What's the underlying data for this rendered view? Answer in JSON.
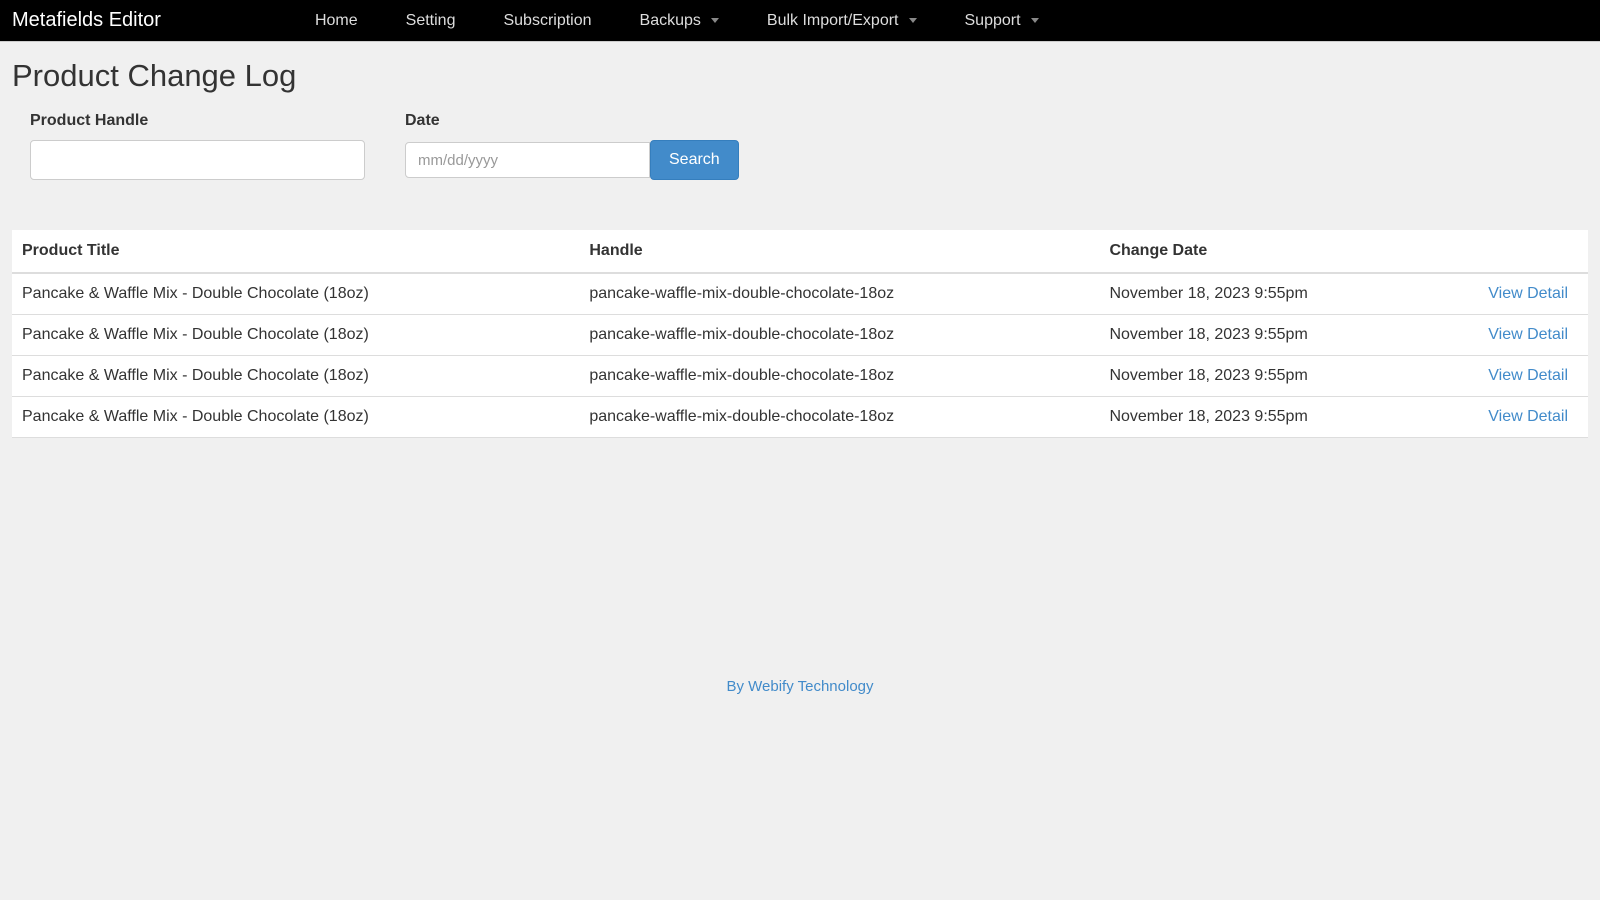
{
  "navbar": {
    "brand": "Metafields Editor",
    "items": [
      {
        "label": "Home",
        "dropdown": false
      },
      {
        "label": "Setting",
        "dropdown": false
      },
      {
        "label": "Subscription",
        "dropdown": false
      },
      {
        "label": "Backups",
        "dropdown": true
      },
      {
        "label": "Bulk Import/Export",
        "dropdown": true
      },
      {
        "label": "Support",
        "dropdown": true
      }
    ]
  },
  "page": {
    "title": "Product Change Log"
  },
  "search": {
    "handle_label": "Product Handle",
    "handle_value": "",
    "date_label": "Date",
    "date_placeholder": "mm/dd/yyyy",
    "date_value": "",
    "button_label": "Search"
  },
  "table": {
    "columns": [
      "Product Title",
      "Handle",
      "Change Date",
      ""
    ],
    "view_detail_label": "View Detail",
    "rows": [
      {
        "title": "Pancake & Waffle Mix - Double Chocolate (18oz)",
        "handle": "pancake-waffle-mix-double-chocolate-18oz",
        "date": "November 18, 2023 9:55pm"
      },
      {
        "title": "Pancake & Waffle Mix - Double Chocolate (18oz)",
        "handle": "pancake-waffle-mix-double-chocolate-18oz",
        "date": "November 18, 2023 9:55pm"
      },
      {
        "title": "Pancake & Waffle Mix - Double Chocolate (18oz)",
        "handle": "pancake-waffle-mix-double-chocolate-18oz",
        "date": "November 18, 2023 9:55pm"
      },
      {
        "title": "Pancake & Waffle Mix - Double Chocolate (18oz)",
        "handle": "pancake-waffle-mix-double-chocolate-18oz",
        "date": "November 18, 2023 9:55pm"
      }
    ]
  },
  "footer": {
    "text": "By Webify Technology"
  },
  "colors": {
    "navbar_bg": "#000000",
    "page_bg": "#f0f0f0",
    "link": "#428bca",
    "button_bg": "#428bca",
    "border": "#dddddd"
  }
}
